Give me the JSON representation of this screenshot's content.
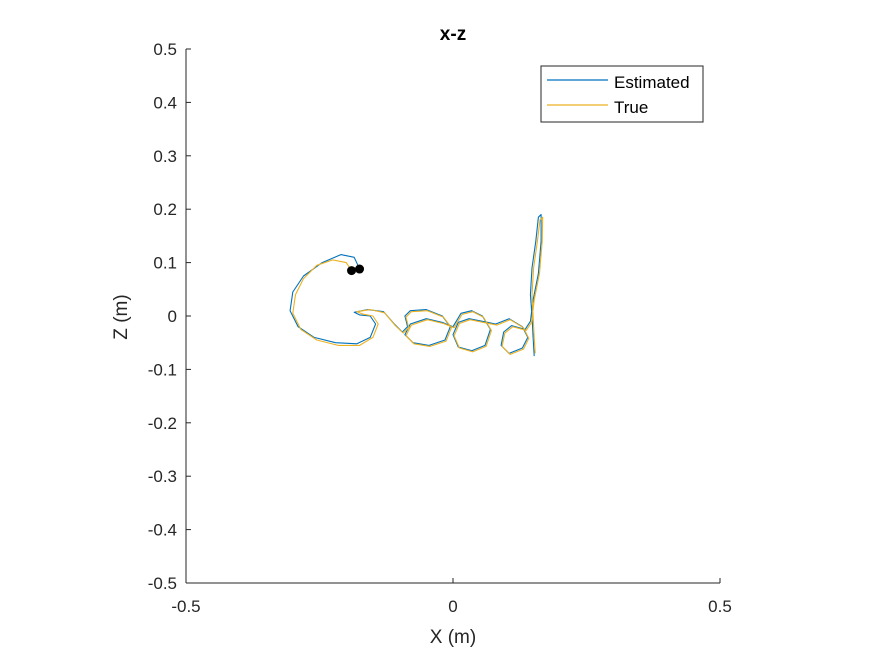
{
  "chart_data": {
    "type": "line",
    "title": "x-z",
    "xlabel": "X (m)",
    "ylabel": "Z (m)",
    "xlim": [
      -0.5,
      0.5
    ],
    "ylim": [
      -0.5,
      0.5
    ],
    "xticks": [
      -0.5,
      0,
      0.5
    ],
    "xtick_labels": [
      "-0.5",
      "0",
      "0.5"
    ],
    "yticks": [
      -0.5,
      -0.4,
      -0.3,
      -0.2,
      -0.1,
      0,
      0.1,
      0.2,
      0.3,
      0.4,
      0.5
    ],
    "ytick_labels": [
      "-0.5",
      "-0.4",
      "-0.3",
      "-0.2",
      "-0.1",
      "0",
      "0.1",
      "0.2",
      "0.3",
      "0.4",
      "0.5"
    ],
    "grid": false,
    "legend_position": "top-right",
    "series": [
      {
        "name": "Estimated",
        "color": "#0072BD",
        "points": [
          [
            -0.175,
            0.088
          ],
          [
            -0.185,
            0.11
          ],
          [
            -0.21,
            0.115
          ],
          [
            -0.245,
            0.1
          ],
          [
            -0.28,
            0.075
          ],
          [
            -0.3,
            0.045
          ],
          [
            -0.305,
            0.01
          ],
          [
            -0.29,
            -0.02
          ],
          [
            -0.26,
            -0.04
          ],
          [
            -0.22,
            -0.05
          ],
          [
            -0.18,
            -0.052
          ],
          [
            -0.155,
            -0.04
          ],
          [
            -0.145,
            -0.015
          ],
          [
            -0.155,
            0.0
          ],
          [
            -0.175,
            0.002
          ],
          [
            -0.185,
            0.007
          ],
          [
            -0.16,
            0.012
          ],
          [
            -0.13,
            0.008
          ],
          [
            -0.11,
            -0.015
          ],
          [
            -0.095,
            -0.03
          ],
          [
            -0.085,
            -0.02
          ],
          [
            -0.09,
            0.0
          ],
          [
            -0.08,
            0.01
          ],
          [
            -0.05,
            0.012
          ],
          [
            -0.02,
            0.0
          ],
          [
            -0.005,
            -0.02
          ],
          [
            -0.015,
            -0.045
          ],
          [
            -0.045,
            -0.055
          ],
          [
            -0.075,
            -0.05
          ],
          [
            -0.09,
            -0.035
          ],
          [
            -0.08,
            -0.015
          ],
          [
            -0.05,
            -0.005
          ],
          [
            -0.02,
            -0.012
          ],
          [
            0.0,
            -0.02
          ],
          [
            0.015,
            0.005
          ],
          [
            0.035,
            0.01
          ],
          [
            0.055,
            0.0
          ],
          [
            0.07,
            -0.025
          ],
          [
            0.06,
            -0.055
          ],
          [
            0.035,
            -0.065
          ],
          [
            0.01,
            -0.058
          ],
          [
            0.0,
            -0.035
          ],
          [
            0.01,
            -0.012
          ],
          [
            0.03,
            -0.005
          ],
          [
            0.055,
            -0.01
          ],
          [
            0.08,
            -0.015
          ],
          [
            0.105,
            -0.005
          ],
          [
            0.13,
            -0.02
          ],
          [
            0.14,
            -0.04
          ],
          [
            0.13,
            -0.06
          ],
          [
            0.105,
            -0.07
          ],
          [
            0.09,
            -0.055
          ],
          [
            0.095,
            -0.03
          ],
          [
            0.11,
            -0.018
          ],
          [
            0.135,
            -0.025
          ],
          [
            0.145,
            -0.01
          ],
          [
            0.15,
            0.03
          ],
          [
            0.16,
            0.08
          ],
          [
            0.165,
            0.14
          ],
          [
            0.165,
            0.19
          ],
          [
            0.16,
            0.185
          ],
          [
            0.155,
            0.14
          ],
          [
            0.148,
            0.09
          ],
          [
            0.145,
            0.04
          ],
          [
            0.148,
            0.0
          ],
          [
            0.15,
            -0.04
          ],
          [
            0.152,
            -0.075
          ]
        ]
      },
      {
        "name": "True",
        "color": "#EDB120",
        "points": [
          [
            -0.19,
            0.085
          ],
          [
            -0.2,
            0.1
          ],
          [
            -0.225,
            0.105
          ],
          [
            -0.255,
            0.095
          ],
          [
            -0.28,
            0.07
          ],
          [
            -0.295,
            0.04
          ],
          [
            -0.3,
            0.005
          ],
          [
            -0.285,
            -0.025
          ],
          [
            -0.255,
            -0.045
          ],
          [
            -0.215,
            -0.055
          ],
          [
            -0.175,
            -0.055
          ],
          [
            -0.15,
            -0.04
          ],
          [
            -0.14,
            -0.015
          ],
          [
            -0.15,
            0.0
          ],
          [
            -0.17,
            0.004
          ],
          [
            -0.18,
            0.008
          ],
          [
            -0.155,
            0.012
          ],
          [
            -0.128,
            0.006
          ],
          [
            -0.108,
            -0.018
          ],
          [
            -0.093,
            -0.032
          ],
          [
            -0.083,
            -0.022
          ],
          [
            -0.088,
            -0.002
          ],
          [
            -0.078,
            0.008
          ],
          [
            -0.048,
            0.01
          ],
          [
            -0.018,
            -0.002
          ],
          [
            -0.003,
            -0.022
          ],
          [
            -0.013,
            -0.047
          ],
          [
            -0.043,
            -0.057
          ],
          [
            -0.073,
            -0.052
          ],
          [
            -0.088,
            -0.037
          ],
          [
            -0.078,
            -0.017
          ],
          [
            -0.048,
            -0.007
          ],
          [
            -0.018,
            -0.014
          ],
          [
            0.002,
            -0.022
          ],
          [
            0.017,
            0.003
          ],
          [
            0.037,
            0.008
          ],
          [
            0.057,
            -0.002
          ],
          [
            0.072,
            -0.027
          ],
          [
            0.062,
            -0.057
          ],
          [
            0.037,
            -0.067
          ],
          [
            0.012,
            -0.06
          ],
          [
            0.002,
            -0.037
          ],
          [
            0.012,
            -0.014
          ],
          [
            0.032,
            -0.007
          ],
          [
            0.057,
            -0.012
          ],
          [
            0.082,
            -0.017
          ],
          [
            0.107,
            -0.007
          ],
          [
            0.132,
            -0.022
          ],
          [
            0.142,
            -0.042
          ],
          [
            0.132,
            -0.062
          ],
          [
            0.107,
            -0.072
          ],
          [
            0.092,
            -0.057
          ],
          [
            0.097,
            -0.032
          ],
          [
            0.112,
            -0.02
          ],
          [
            0.137,
            -0.027
          ],
          [
            0.147,
            -0.012
          ],
          [
            0.152,
            0.03
          ],
          [
            0.162,
            0.08
          ],
          [
            0.167,
            0.14
          ],
          [
            0.168,
            0.185
          ],
          [
            0.163,
            0.18
          ],
          [
            0.158,
            0.14
          ],
          [
            0.151,
            0.09
          ],
          [
            0.148,
            0.04
          ],
          [
            0.15,
            0.0
          ],
          [
            0.152,
            -0.04
          ],
          [
            0.154,
            -0.07
          ]
        ]
      }
    ],
    "markers": [
      {
        "x": -0.19,
        "y": 0.085,
        "color": "#000000"
      },
      {
        "x": -0.175,
        "y": 0.088,
        "color": "#000000"
      }
    ]
  }
}
